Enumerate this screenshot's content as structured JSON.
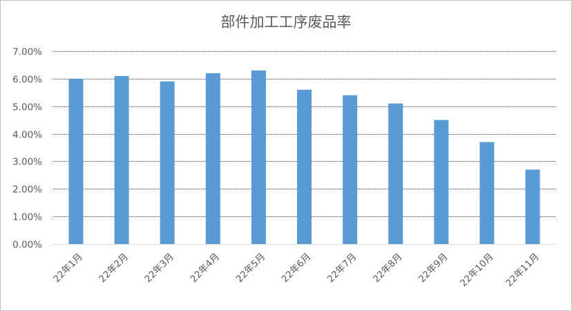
{
  "chart_data": {
    "type": "bar",
    "title": "部件加工工序废品率",
    "categories": [
      "22年1月",
      "22年2月",
      "22年3月",
      "22年4月",
      "22年5月",
      "22年6月",
      "22年7月",
      "22年8月",
      "22年9月",
      "22年10月",
      "22年11月"
    ],
    "values": [
      6.0,
      6.1,
      5.9,
      6.2,
      6.3,
      5.6,
      5.4,
      5.1,
      4.5,
      3.7,
      2.7
    ],
    "ylim": [
      0,
      7
    ],
    "yticks": [
      "0.00%",
      "1.00%",
      "2.00%",
      "3.00%",
      "4.00%",
      "5.00%",
      "6.00%",
      "7.00%"
    ],
    "grid": true,
    "bar_color": "#5b9bd5",
    "grid_color": "#404040"
  }
}
